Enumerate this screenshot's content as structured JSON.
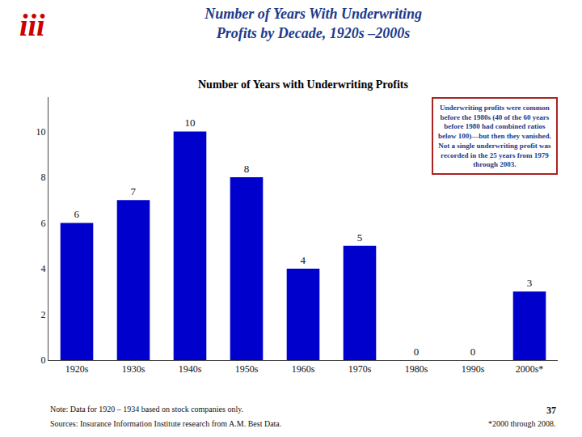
{
  "chart_data": {
    "type": "bar",
    "title": "Number of Years With Underwriting\nProfits by Decade, 1920s –2000s",
    "subtitle": "Number of Years with Underwriting Profits",
    "categories": [
      "1920s",
      "1930s",
      "1940s",
      "1950s",
      "1960s",
      "1970s",
      "1980s",
      "1990s",
      "2000s*"
    ],
    "values": [
      6,
      7,
      10,
      8,
      4,
      5,
      0,
      0,
      3
    ],
    "color": "#0000CC",
    "ylim": [
      0,
      11.5
    ],
    "yticks": [
      0,
      2,
      4,
      6,
      8,
      10
    ],
    "grid": false,
    "data_labels": true,
    "annotations": [
      "Underwriting profits were common\nbefore the 1980s (40 of the 60 years\nbefore 1980 had combined ratios\nbelow 100)—but then they vanished.\nNot a single underwriting profit was\nrecorded in the 25 years from 1979\nthrough 2003.",
      "Note: Data for 1920 – 1934 based on stock companies only.",
      "Sources: Insurance Information Institute research from A.M. Best Data.",
      "37",
      "*2000 through 2008.",
      "iii"
    ]
  }
}
